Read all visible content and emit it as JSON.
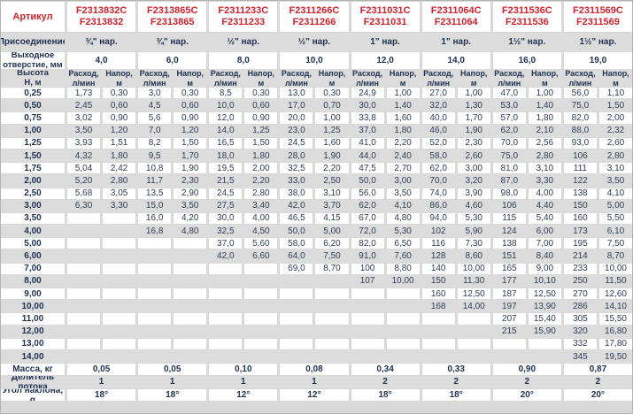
{
  "colors": {
    "accent_red": "#d2232e",
    "label_navy": "#1e3150",
    "data_text": "#2f3c58",
    "band_gray": "#dcdcdc",
    "cell_white": "#ffffff"
  },
  "header": {
    "article_label": "Артикул",
    "connection_label": "Присоединение",
    "outlet_label": "Выходное\nотверстие, мм",
    "height_label": "Высота\nН, м",
    "flow_label": "Расход,\nл/мин",
    "head_label": "Напор,\nм"
  },
  "columns": [
    {
      "article_c": "F2313832C",
      "article": "F2313832",
      "connection": "¾\" нар.",
      "outlet": "4,0"
    },
    {
      "article_c": "F2313865C",
      "article": "F2313865",
      "connection": "¾\" нар.",
      "outlet": "6,0"
    },
    {
      "article_c": "F2311233C",
      "article": "F2311233",
      "connection": "½\" нар.",
      "outlet": "8,0"
    },
    {
      "article_c": "F2311266C",
      "article": "F2311266",
      "connection": "½\" нар.",
      "outlet": "10,0"
    },
    {
      "article_c": "F2311031C",
      "article": "F2311031",
      "connection": "1\" нар.",
      "outlet": "12,0"
    },
    {
      "article_c": "F2311064C",
      "article": "F2311064",
      "connection": "1\" нар.",
      "outlet": "14,0"
    },
    {
      "article_c": "F2311536C",
      "article": "F2311536",
      "connection": "1½\" нар.",
      "outlet": "16,0"
    },
    {
      "article_c": "F2311569C",
      "article": "F2311569",
      "connection": "1½\" нар.",
      "outlet": "19,0"
    }
  ],
  "rows": [
    {
      "height": "0,25",
      "values": [
        [
          "1,73",
          "0,30"
        ],
        [
          "3,0",
          "0,30"
        ],
        [
          "8,5",
          "0,30"
        ],
        [
          "13,0",
          "0,30"
        ],
        [
          "24,9",
          "1,00"
        ],
        [
          "27,0",
          "1,00"
        ],
        [
          "47,0",
          "1,00"
        ],
        [
          "56,0",
          "1,10"
        ]
      ]
    },
    {
      "height": "0,50",
      "values": [
        [
          "2,45",
          "0,60"
        ],
        [
          "4,5",
          "0,60"
        ],
        [
          "10,0",
          "0,60"
        ],
        [
          "17,0",
          "0,70"
        ],
        [
          "30,0",
          "1,40"
        ],
        [
          "32,0",
          "1,30"
        ],
        [
          "53,0",
          "1,40"
        ],
        [
          "75,0",
          "1,50"
        ]
      ]
    },
    {
      "height": "0,75",
      "values": [
        [
          "3,02",
          "0,90"
        ],
        [
          "5,6",
          "0,90"
        ],
        [
          "12,0",
          "0,90"
        ],
        [
          "20,0",
          "1,00"
        ],
        [
          "33,8",
          "1,60"
        ],
        [
          "40,0",
          "1,70"
        ],
        [
          "57,0",
          "1,80"
        ],
        [
          "82,0",
          "2,00"
        ]
      ]
    },
    {
      "height": "1,00",
      "values": [
        [
          "3,50",
          "1,20"
        ],
        [
          "7,0",
          "1,20"
        ],
        [
          "14,0",
          "1,25"
        ],
        [
          "23,0",
          "1,25"
        ],
        [
          "37,0",
          "1,80"
        ],
        [
          "46,0",
          "1,90"
        ],
        [
          "62,0",
          "2,10"
        ],
        [
          "88,0",
          "2,32"
        ]
      ]
    },
    {
      "height": "1,25",
      "values": [
        [
          "3,93",
          "1,51"
        ],
        [
          "8,2",
          "1,50"
        ],
        [
          "16,5",
          "1,50"
        ],
        [
          "24,5",
          "1,60"
        ],
        [
          "41,0",
          "2,20"
        ],
        [
          "52,0",
          "2,30"
        ],
        [
          "70,0",
          "2,56"
        ],
        [
          "93,0",
          "2,60"
        ]
      ]
    },
    {
      "height": "1,50",
      "values": [
        [
          "4,32",
          "1,80"
        ],
        [
          "9,5",
          "1,70"
        ],
        [
          "18,0",
          "1,80"
        ],
        [
          "28,0",
          "1,90"
        ],
        [
          "44,0",
          "2,40"
        ],
        [
          "58,0",
          "2,60"
        ],
        [
          "75,0",
          "2,80"
        ],
        [
          "106",
          "2,80"
        ]
      ]
    },
    {
      "height": "1,75",
      "values": [
        [
          "5,04",
          "2,42"
        ],
        [
          "10,8",
          "1,90"
        ],
        [
          "19,5",
          "2,00"
        ],
        [
          "32,5",
          "2,20"
        ],
        [
          "47,5",
          "2,70"
        ],
        [
          "62,0",
          "3,00"
        ],
        [
          "81,0",
          "3,10"
        ],
        [
          "111",
          "3,10"
        ]
      ]
    },
    {
      "height": "2,00",
      "values": [
        [
          "5,20",
          "2,80"
        ],
        [
          "11,7",
          "2,30"
        ],
        [
          "21,5",
          "2,20"
        ],
        [
          "33,0",
          "2,50"
        ],
        [
          "50,0",
          "3,00"
        ],
        [
          "70,0",
          "3,20"
        ],
        [
          "87,0",
          "3,30"
        ],
        [
          "122",
          "3,50"
        ]
      ]
    },
    {
      "height": "2,50",
      "values": [
        [
          "5,68",
          "3,05"
        ],
        [
          "13,5",
          "2,90"
        ],
        [
          "24,5",
          "2,80"
        ],
        [
          "38,0",
          "3,10"
        ],
        [
          "56,0",
          "3,50"
        ],
        [
          "74,0",
          "3,90"
        ],
        [
          "98,0",
          "4,00"
        ],
        [
          "138",
          "4,10"
        ]
      ]
    },
    {
      "height": "3,00",
      "values": [
        [
          "6,30",
          "3,30"
        ],
        [
          "15,0",
          "3,50"
        ],
        [
          "27,5",
          "3,40"
        ],
        [
          "42,0",
          "3,70"
        ],
        [
          "62,0",
          "4,10"
        ],
        [
          "86,0",
          "4,60"
        ],
        [
          "106",
          "4,40"
        ],
        [
          "150",
          "5,00"
        ]
      ]
    },
    {
      "height": "3,50",
      "values": [
        [
          "",
          ""
        ],
        [
          "16,0",
          "4,20"
        ],
        [
          "30,0",
          "4,00"
        ],
        [
          "46,5",
          "4,15"
        ],
        [
          "67,0",
          "4,80"
        ],
        [
          "94,0",
          "5,30"
        ],
        [
          "115",
          "5,40"
        ],
        [
          "160",
          "5,50"
        ]
      ]
    },
    {
      "height": "4,00",
      "values": [
        [
          "",
          ""
        ],
        [
          "16,8",
          "4,80"
        ],
        [
          "32,5",
          "4,50"
        ],
        [
          "50,0",
          "5,00"
        ],
        [
          "72,0",
          "5,30"
        ],
        [
          "102",
          "5,90"
        ],
        [
          "124",
          "6,00"
        ],
        [
          "173",
          "6,10"
        ]
      ]
    },
    {
      "height": "5,00",
      "values": [
        [
          "",
          ""
        ],
        [
          "",
          ""
        ],
        [
          "37,0",
          "5,60"
        ],
        [
          "58,0",
          "6,20"
        ],
        [
          "82,0",
          "6,50"
        ],
        [
          "116",
          "7,30"
        ],
        [
          "138",
          "7,00"
        ],
        [
          "195",
          "7,50"
        ]
      ]
    },
    {
      "height": "6,00",
      "values": [
        [
          "",
          ""
        ],
        [
          "",
          ""
        ],
        [
          "42,0",
          "6,60"
        ],
        [
          "64,0",
          "7,50"
        ],
        [
          "91,0",
          "7,60"
        ],
        [
          "128",
          "8,60"
        ],
        [
          "151",
          "8,40"
        ],
        [
          "214",
          "8,70"
        ]
      ]
    },
    {
      "height": "7,00",
      "values": [
        [
          "",
          ""
        ],
        [
          "",
          ""
        ],
        [
          "",
          ""
        ],
        [
          "69,0",
          "8,70"
        ],
        [
          "100",
          "8,80"
        ],
        [
          "140",
          "10,00"
        ],
        [
          "165",
          "9,00"
        ],
        [
          "233",
          "10,00"
        ]
      ]
    },
    {
      "height": "8,00",
      "values": [
        [
          "",
          ""
        ],
        [
          "",
          ""
        ],
        [
          "",
          ""
        ],
        [
          "",
          ""
        ],
        [
          "107",
          "10,00"
        ],
        [
          "150",
          "11,30"
        ],
        [
          "177",
          "10,10"
        ],
        [
          "250",
          "11,50"
        ]
      ]
    },
    {
      "height": "9,00",
      "values": [
        [
          "",
          ""
        ],
        [
          "",
          ""
        ],
        [
          "",
          ""
        ],
        [
          "",
          ""
        ],
        [
          "",
          ""
        ],
        [
          "160",
          "12,50"
        ],
        [
          "187",
          "12,50"
        ],
        [
          "270",
          "12,60"
        ]
      ]
    },
    {
      "height": "10,00",
      "values": [
        [
          "",
          ""
        ],
        [
          "",
          ""
        ],
        [
          "",
          ""
        ],
        [
          "",
          ""
        ],
        [
          "",
          ""
        ],
        [
          "168",
          "14,00"
        ],
        [
          "197",
          "13,90"
        ],
        [
          "286",
          "14,10"
        ]
      ]
    },
    {
      "height": "11,00",
      "values": [
        [
          "",
          ""
        ],
        [
          "",
          ""
        ],
        [
          "",
          ""
        ],
        [
          "",
          ""
        ],
        [
          "",
          ""
        ],
        [
          "",
          ""
        ],
        [
          "207",
          "15,40"
        ],
        [
          "305",
          "15,50"
        ]
      ]
    },
    {
      "height": "12,00",
      "values": [
        [
          "",
          ""
        ],
        [
          "",
          ""
        ],
        [
          "",
          ""
        ],
        [
          "",
          ""
        ],
        [
          "",
          ""
        ],
        [
          "",
          ""
        ],
        [
          "215",
          "15,90"
        ],
        [
          "320",
          "16,80"
        ]
      ]
    },
    {
      "height": "13,00",
      "values": [
        [
          "",
          ""
        ],
        [
          "",
          ""
        ],
        [
          "",
          ""
        ],
        [
          "",
          ""
        ],
        [
          "",
          ""
        ],
        [
          "",
          ""
        ],
        [
          "",
          ""
        ],
        [
          "332",
          "17,80"
        ]
      ]
    },
    {
      "height": "14,00",
      "values": [
        [
          "",
          ""
        ],
        [
          "",
          ""
        ],
        [
          "",
          ""
        ],
        [
          "",
          ""
        ],
        [
          "",
          ""
        ],
        [
          "",
          ""
        ],
        [
          "",
          ""
        ],
        [
          "345",
          "19,50"
        ]
      ]
    }
  ],
  "footer": {
    "mass_label": "Масса, кг",
    "mass": [
      "0,05",
      "0,05",
      "0,10",
      "0,08",
      "0,34",
      "0,33",
      "0,90",
      "0,87"
    ],
    "divider_label": "Делитель потока",
    "divider": [
      "1",
      "1",
      "1",
      "1",
      "2",
      "2",
      "2",
      "2"
    ],
    "angle_label": "Угол наклона, α",
    "angle": [
      "18°",
      "18°",
      "12°",
      "12°",
      "18°",
      "18°",
      "20°",
      "20°"
    ]
  }
}
